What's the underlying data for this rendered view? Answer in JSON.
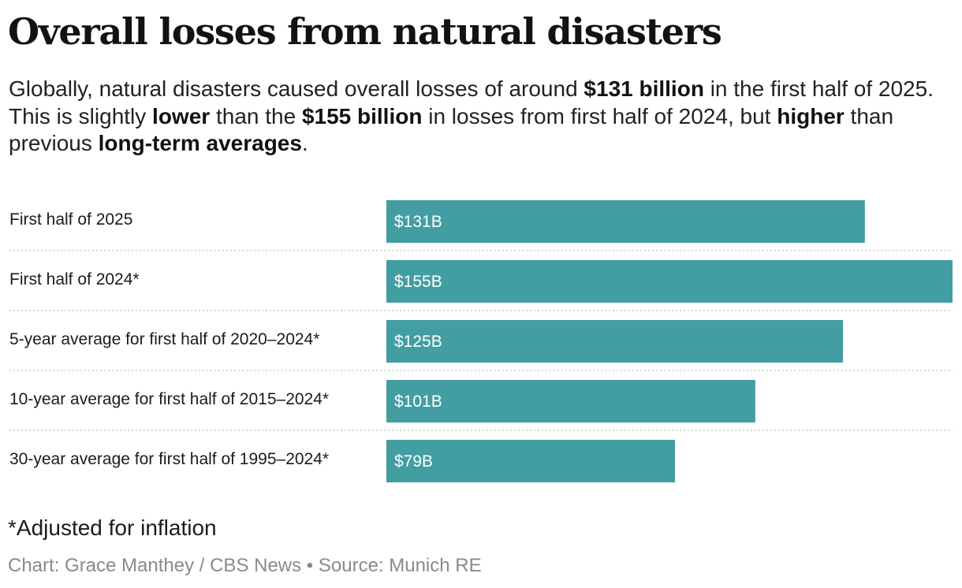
{
  "title": "Overall losses from natural disasters",
  "subtitle": [
    {
      "text": "Globally, natural disasters caused overall losses of around ",
      "bold": false
    },
    {
      "text": "$131 billion",
      "bold": true
    },
    {
      "text": " in the first half of 2025. This is slightly ",
      "bold": false
    },
    {
      "text": "lower",
      "bold": true
    },
    {
      "text": " than the ",
      "bold": false
    },
    {
      "text": "$155 billion",
      "bold": true
    },
    {
      "text": " in losses from first half of 2024, but ",
      "bold": false
    },
    {
      "text": "higher",
      "bold": true
    },
    {
      "text": " than previous ",
      "bold": false
    },
    {
      "text": "long-term averages",
      "bold": true
    },
    {
      "text": ".",
      "bold": false
    }
  ],
  "chart_data": {
    "type": "bar",
    "orientation": "horizontal",
    "categories": [
      "First half of 2025",
      "First half of 2024*",
      "5-year average for first half of 2020–2024*",
      "10-year average for first half of 2015–2024*",
      "30-year average for first half of 1995–2024*"
    ],
    "values": [
      131,
      155,
      125,
      101,
      79
    ],
    "value_labels": [
      "$131B",
      "$155B",
      "$125B",
      "$101B",
      "$79B"
    ],
    "unit": "billion USD",
    "xlim": [
      0,
      155
    ],
    "bar_color": "#429ea2",
    "grid": false
  },
  "footnote": "*Adjusted for inflation",
  "credit": "Chart: Grace Manthey / CBS News • Source: Munich RE"
}
